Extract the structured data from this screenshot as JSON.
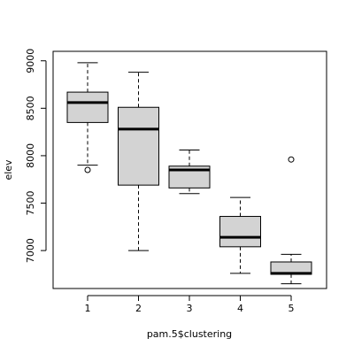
{
  "chart_data": {
    "type": "boxplot",
    "xlabel": "pam.5$clustering",
    "ylabel": "elev",
    "ylim": [
      6600,
      9100
    ],
    "yticks": [
      7000,
      7500,
      8000,
      8500,
      9000
    ],
    "categories": [
      "1",
      "2",
      "3",
      "4",
      "5"
    ],
    "boxes": [
      {
        "category": "1",
        "whisker_low": 7900,
        "q1": 8350,
        "median": 8560,
        "q3": 8670,
        "whisker_high": 8980,
        "outliers": [
          7850
        ]
      },
      {
        "category": "2",
        "whisker_low": 7000,
        "q1": 7690,
        "median": 8280,
        "q3": 8510,
        "whisker_high": 8880,
        "outliers": []
      },
      {
        "category": "3",
        "whisker_low": 7600,
        "q1": 7660,
        "median": 7850,
        "q3": 7890,
        "whisker_high": 8060,
        "outliers": []
      },
      {
        "category": "4",
        "whisker_low": 6760,
        "q1": 7040,
        "median": 7140,
        "q3": 7360,
        "whisker_high": 7560,
        "outliers": []
      },
      {
        "category": "5",
        "whisker_low": 6650,
        "q1": 6750,
        "median": 6760,
        "q3": 6880,
        "whisker_high": 6960,
        "outliers": [
          7960
        ]
      }
    ],
    "colors": {
      "box_fill": "#d3d3d3",
      "stroke": "#000000"
    },
    "grid": false,
    "legend": "none"
  }
}
